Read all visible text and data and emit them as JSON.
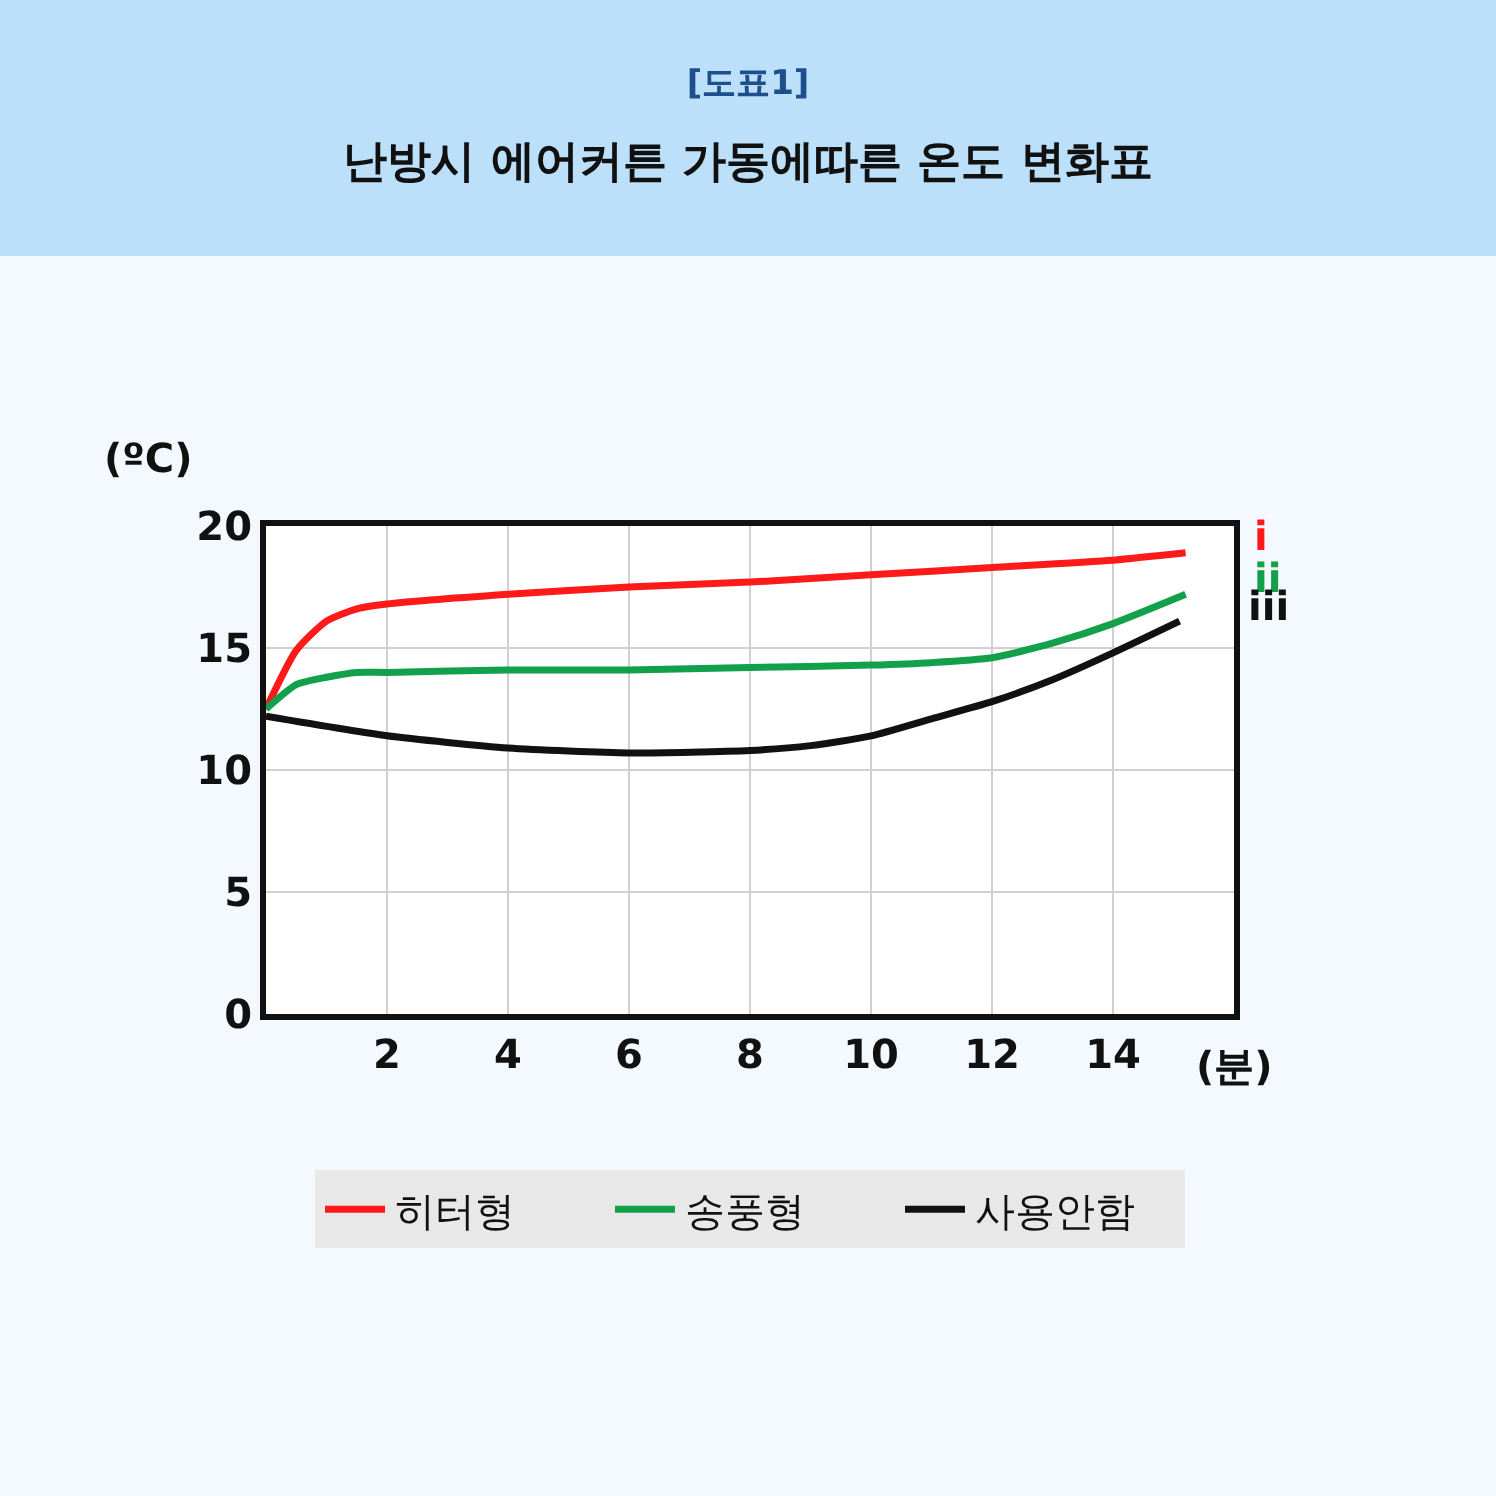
{
  "chart_data": {
    "type": "line",
    "title": "[도표1]",
    "subtitle": "난방시 에어커튼 가동에따른 온도 변화표",
    "xlabel": "(분)",
    "ylabel": "(ºC)",
    "xlim": [
      0,
      16
    ],
    "xticks": [
      2,
      4,
      6,
      8,
      10,
      12,
      14
    ],
    "ylim": [
      0,
      20
    ],
    "yticks": [
      0,
      5,
      10,
      15,
      20
    ],
    "grid": true,
    "legend": "bottom",
    "line_style": "solid",
    "series": [
      {
        "name": "히터형",
        "color": "#ff1a1a",
        "x": [
          0,
          0.5,
          1,
          1.5,
          2,
          4,
          6,
          8,
          10,
          12,
          14,
          15.2
        ],
        "values": [
          12.5,
          14.9,
          16.1,
          16.6,
          16.8,
          17.2,
          17.5,
          17.7,
          18.0,
          18.3,
          18.6,
          18.9
        ]
      },
      {
        "name": "송풍형",
        "color": "#12a04a",
        "x": [
          0,
          0.5,
          1,
          1.5,
          2,
          4,
          6,
          8,
          10,
          11,
          12,
          13,
          14,
          15.2
        ],
        "values": [
          12.5,
          13.5,
          13.8,
          14.0,
          14.0,
          14.1,
          14.1,
          14.2,
          14.3,
          14.4,
          14.6,
          15.2,
          16.0,
          17.2
        ]
      },
      {
        "name": "사용안함",
        "color": "#111111",
        "x": [
          0,
          2,
          4,
          6,
          8,
          9,
          10,
          11,
          12,
          13,
          14,
          15.1
        ],
        "values": [
          12.2,
          11.4,
          10.9,
          10.7,
          10.8,
          11.0,
          11.4,
          12.1,
          12.8,
          13.7,
          14.8,
          16.1
        ]
      }
    ],
    "annotations": [
      "i",
      "ii",
      "iii"
    ]
  }
}
